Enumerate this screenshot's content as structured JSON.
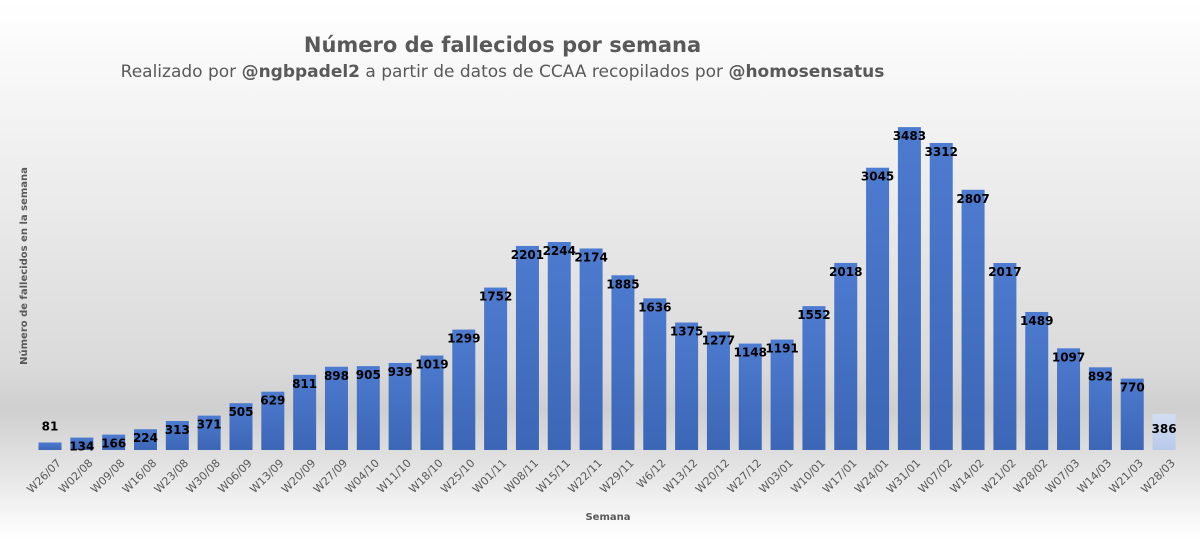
{
  "chart_data": {
    "type": "bar",
    "title": "Número de fallecidos por semana",
    "subtitle": {
      "part1": "Realizado por ",
      "handle1": "@ngbpadel2",
      "part2": " a partir de datos de CCAA recopilados por ",
      "handle2": "@homosensatus"
    },
    "xlabel": "Semana",
    "ylabel": "Número de fallecidos en la semana",
    "ylim": [
      0,
      3700
    ],
    "grid": false,
    "legend": "none",
    "categories": [
      "W26/07",
      "W02/08",
      "W09/08",
      "W16/08",
      "W23/08",
      "W30/08",
      "W06/09",
      "W13/09",
      "W20/09",
      "W27/09",
      "W04/10",
      "W11/10",
      "W18/10",
      "W25/10",
      "W01/11",
      "W08/11",
      "W15/11",
      "W22/11",
      "W29/11",
      "W6/12",
      "W13/12",
      "W20/12",
      "W27/12",
      "W03/01",
      "W10/01",
      "W17/01",
      "W24/01",
      "W31/01",
      "W07/02",
      "W14/02",
      "W21/02",
      "W28/02",
      "W07/03",
      "W14/03",
      "W21/03",
      "W28/03"
    ],
    "values": [
      81,
      134,
      166,
      224,
      313,
      371,
      505,
      629,
      811,
      898,
      905,
      939,
      1019,
      1299,
      1752,
      2201,
      2244,
      2174,
      1885,
      1636,
      1375,
      1277,
      1148,
      1191,
      1552,
      2018,
      3045,
      3483,
      3312,
      2807,
      2017,
      1489,
      1097,
      892,
      770,
      386
    ],
    "colors": {
      "bar": "#4472c4",
      "bar_last": "#c5d3ef",
      "text": "#595959",
      "label": "#000000"
    }
  }
}
